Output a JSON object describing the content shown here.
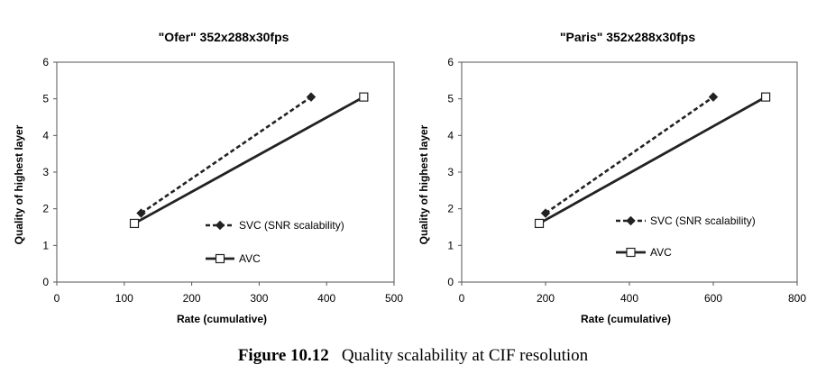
{
  "caption": {
    "label": "Figure 10.12",
    "text": "Quality scalability at CIF resolution"
  },
  "colors": {
    "line": "#222222"
  },
  "chart_data": [
    {
      "type": "line",
      "title": "\"Ofer\" 352x288x30fps",
      "xlabel": "Rate (cumulative)",
      "ylabel": "Quality of highest layer",
      "xlim": [
        0,
        500
      ],
      "ylim": [
        0,
        6
      ],
      "xticks": [
        0,
        100,
        200,
        300,
        400,
        500
      ],
      "yticks": [
        0,
        1,
        2,
        3,
        4,
        5,
        6
      ],
      "grid": false,
      "series": [
        {
          "name": "SVC (SNR scalability)",
          "style": "dashed",
          "marker": "diamond-filled",
          "x": [
            125,
            377
          ],
          "y": [
            1.88,
            5.05
          ]
        },
        {
          "name": "AVC",
          "style": "solid",
          "marker": "square-open",
          "x": [
            115,
            455
          ],
          "y": [
            1.6,
            5.05
          ]
        }
      ]
    },
    {
      "type": "line",
      "title": "\"Paris\" 352x288x30fps",
      "xlabel": "Rate (cumulative)",
      "ylabel": "Quality of highest layer",
      "xlim": [
        0,
        800
      ],
      "ylim": [
        0,
        6
      ],
      "xticks": [
        0,
        200,
        400,
        600,
        800
      ],
      "yticks": [
        0,
        1,
        2,
        3,
        4,
        5,
        6
      ],
      "grid": false,
      "series": [
        {
          "name": "SVC (SNR scalability)",
          "style": "dashed",
          "marker": "diamond-filled",
          "x": [
            200,
            600
          ],
          "y": [
            1.88,
            5.05
          ]
        },
        {
          "name": "AVC",
          "style": "solid",
          "marker": "square-open",
          "x": [
            185,
            725
          ],
          "y": [
            1.6,
            5.05
          ]
        }
      ]
    }
  ]
}
